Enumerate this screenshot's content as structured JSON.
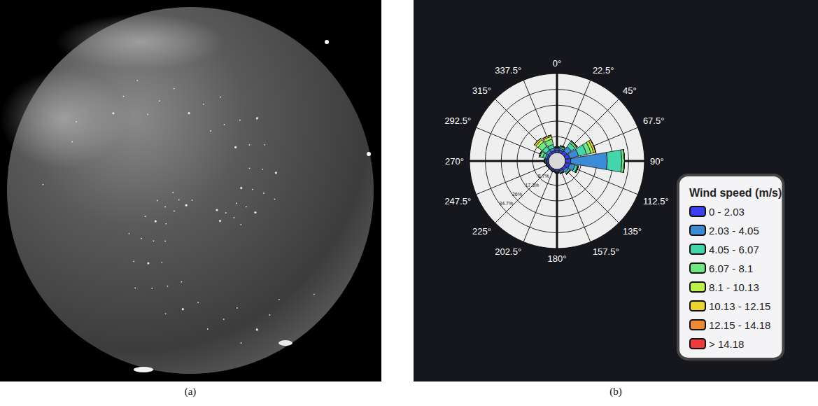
{
  "captions": [
    "(a)",
    "(b)"
  ],
  "chart_data": {
    "type": "barpolar",
    "categories": [
      "0°",
      "22.5°",
      "45°",
      "67.5°",
      "90°",
      "112.5°",
      "135°",
      "157.5°",
      "180°",
      "202.5°",
      "225°",
      "247.5°",
      "270°",
      "292.5°",
      "315°",
      "337.5°"
    ],
    "ylim": [
      0,
      43.4
    ],
    "yticks": [
      {
        "value": 8.7,
        "label": "8.7%"
      },
      {
        "value": 17.3,
        "label": "17.3%"
      },
      {
        "value": 26,
        "label": "26%"
      },
      {
        "value": 34.7,
        "label": "34.7%"
      }
    ],
    "grid": true,
    "stacked": true,
    "legend": "lower right",
    "legend_title": "Wind speed (m/s)",
    "series": [
      {
        "name": "0 - 2.03",
        "color": "#3a3ff2",
        "values": [
          1.5,
          1.5,
          2,
          2.5,
          3,
          2.5,
          1.5,
          1,
          1,
          0.8,
          0.8,
          0.8,
          1,
          1,
          1.2,
          1.2
        ]
      },
      {
        "name": "2.03 - 4.05",
        "color": "#3b8bd6",
        "values": [
          0.8,
          1,
          3,
          5,
          20,
          3,
          1.5,
          0.8,
          0.6,
          0.5,
          0.4,
          0.5,
          0.5,
          1,
          1.5,
          1.5
        ]
      },
      {
        "name": "4.05 - 6.07",
        "color": "#43d6aa",
        "values": [
          0.5,
          1,
          2.5,
          4.5,
          8,
          1.5,
          1,
          0.5,
          0.4,
          0.3,
          0.2,
          0.3,
          0.5,
          1.5,
          2.5,
          2
        ]
      },
      {
        "name": "6.07 - 8.1",
        "color": "#6ee883",
        "values": [
          0.3,
          0.5,
          1,
          2.5,
          1.5,
          0.5,
          0.3,
          0.2,
          0,
          0,
          0,
          0,
          0.3,
          1.5,
          3,
          3
        ]
      },
      {
        "name": "8.1 - 10.13",
        "color": "#bdf04c",
        "values": [
          0,
          0,
          0.5,
          1.5,
          0,
          0,
          0,
          0,
          0,
          0,
          0,
          0,
          0,
          0.5,
          1.5,
          1.5
        ]
      },
      {
        "name": "10.13 - 12.15",
        "color": "#ead52c",
        "values": [
          0,
          0,
          0,
          1.2,
          0,
          0,
          0,
          0,
          0,
          0,
          0,
          0,
          0,
          0,
          1,
          0.8
        ]
      },
      {
        "name": "12.15 - 14.18",
        "color": "#f08a32",
        "values": [
          0,
          0,
          0,
          0,
          0,
          0,
          0,
          0,
          0,
          0,
          0,
          0,
          0,
          0,
          0,
          0
        ]
      },
      {
        "name": "> 14.18",
        "color": "#ef3b3b",
        "values": [
          0,
          0,
          0,
          0,
          0,
          0,
          0,
          0,
          0,
          0,
          0,
          0,
          0,
          0,
          0,
          0
        ]
      }
    ]
  }
}
